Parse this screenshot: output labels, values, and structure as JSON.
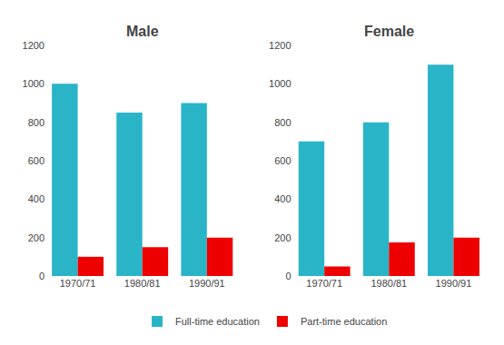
{
  "chart_data": [
    {
      "type": "bar",
      "title": "Male",
      "categories": [
        "1970/71",
        "1980/81",
        "1990/91"
      ],
      "series": [
        {
          "name": "Full-time education",
          "color": "#29b5c7",
          "values": [
            1000,
            850,
            900
          ]
        },
        {
          "name": "Part-time education",
          "color": "#ee0000",
          "values": [
            100,
            150,
            200
          ]
        }
      ],
      "ylim": [
        0,
        1200
      ],
      "yticks": [
        0,
        200,
        400,
        600,
        800,
        1000,
        1200
      ],
      "grid": false,
      "legend": "bottom"
    },
    {
      "type": "bar",
      "title": "Female",
      "categories": [
        "1970/71",
        "1980/81",
        "1990/91"
      ],
      "series": [
        {
          "name": "Full-time education",
          "color": "#29b5c7",
          "values": [
            700,
            800,
            1100
          ]
        },
        {
          "name": "Part-time education",
          "color": "#ee0000",
          "values": [
            50,
            175,
            200
          ]
        }
      ],
      "ylim": [
        0,
        1200
      ],
      "yticks": [
        0,
        200,
        400,
        600,
        800,
        1000,
        1200
      ],
      "grid": false,
      "legend": "bottom"
    }
  ]
}
